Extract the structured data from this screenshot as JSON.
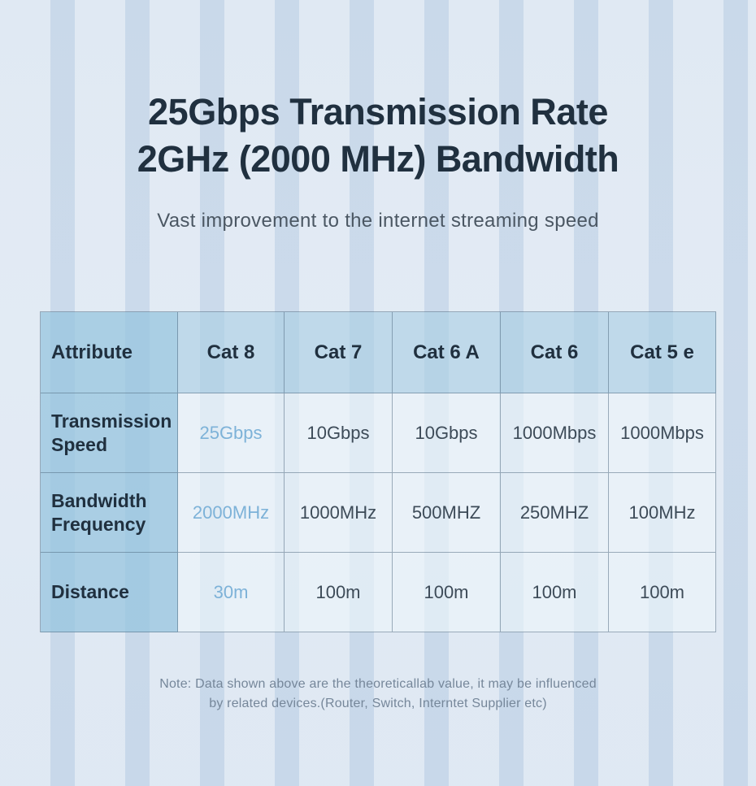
{
  "header": {
    "title_line1": "25Gbps Transmission Rate",
    "title_line2": "2GHz (2000 MHz) Bandwidth",
    "subtitle": "Vast improvement to the internet streaming speed"
  },
  "chart_data": {
    "type": "table",
    "title": "25Gbps Transmission Rate 2GHz (2000 MHz) Bandwidth",
    "columns": [
      "Attribute",
      "Cat 8",
      "Cat 7",
      "Cat 6 A",
      "Cat 6",
      "Cat 5 e"
    ],
    "rows": [
      {
        "label": "Transmission\nSpeed",
        "values": [
          "25Gbps",
          "10Gbps",
          "10Gbps",
          "1000Mbps",
          "1000Mbps"
        ]
      },
      {
        "label": "Bandwidth\n Frequency",
        "values": [
          "2000MHz",
          "1000MHz",
          "500MHZ",
          "250MHZ",
          "100MHz"
        ]
      },
      {
        "label": "Distance",
        "values": [
          "30m",
          "100m",
          "100m",
          "100m",
          "100m"
        ]
      }
    ],
    "highlight_column": "Cat 8",
    "layout": "comparison table, first column row labels, Cat 8 column highlighted in blue"
  },
  "note": {
    "line1": "Note: Data shown above are the theoreticallab value, it may be influenced",
    "line2": "by related devices.(Router, Switch, Interntet Supplier etc)"
  },
  "colors": {
    "page_background": "#d4e1ee",
    "title_text": "#20303f",
    "accent_blue": "#4a9dd2",
    "accent_blue_light": "#7db2d8",
    "first_column_bg": "#b2d4e6",
    "header_row_bg": "#c8dfec",
    "body_cell_bg": "#dfeaf3",
    "note_text": "#76879a"
  }
}
